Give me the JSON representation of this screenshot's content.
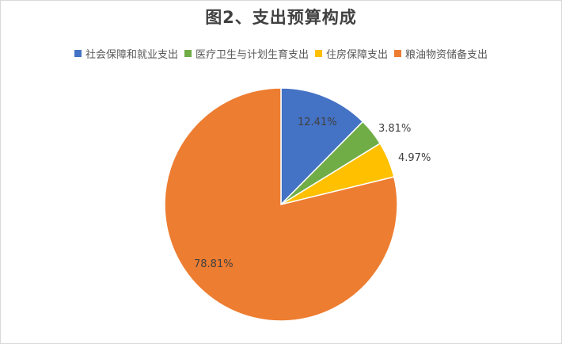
{
  "title": "图2、支出预算构成",
  "legend": [
    {
      "label": "社会保障和就业支出",
      "color": "#4472C4"
    },
    {
      "label": "医疗卫生与计划生育支出",
      "color": "#70AD47"
    },
    {
      "label": "住房保障支出",
      "color": "#FFC000"
    },
    {
      "label": "粮油物资储备支出",
      "color": "#ED7D31"
    }
  ],
  "labels": [
    "12.41%",
    "3.81%",
    "4.97%",
    "78.81%"
  ],
  "chart_data": {
    "type": "pie",
    "title": "图2、支出预算构成",
    "categories": [
      "社会保障和就业支出",
      "医疗卫生与计划生育支出",
      "住房保障支出",
      "粮油物资储备支出"
    ],
    "values": [
      12.41,
      3.81,
      4.97,
      78.81
    ],
    "unit": "%",
    "colors": [
      "#4472C4",
      "#70AD47",
      "#FFC000",
      "#ED7D31"
    ],
    "legend_position": "top",
    "start_angle": "12 o'clock, clockwise"
  }
}
